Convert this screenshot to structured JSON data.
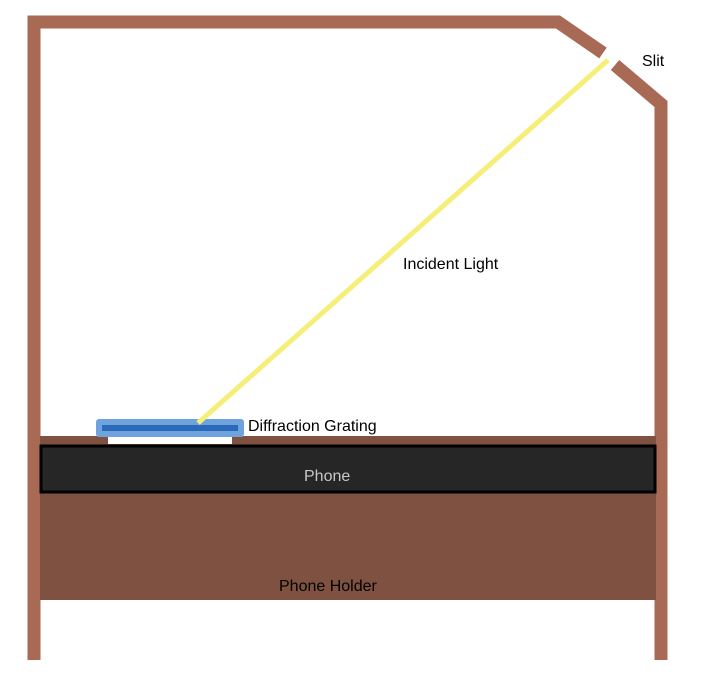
{
  "labels": {
    "slit": "Slit",
    "incident_light": "Incident Light",
    "diffraction_grating": "Diffraction Grating",
    "phone": "Phone",
    "phone_holder": "Phone Holder"
  },
  "colors": {
    "frame": "#a86a55",
    "light_ray": "#f5ef7a",
    "grating_outer": "#6fa3dd",
    "grating_inner": "#2a6ab8",
    "phone": "#262626",
    "phone_holder": "#7f5141",
    "background": "#ffffff"
  }
}
